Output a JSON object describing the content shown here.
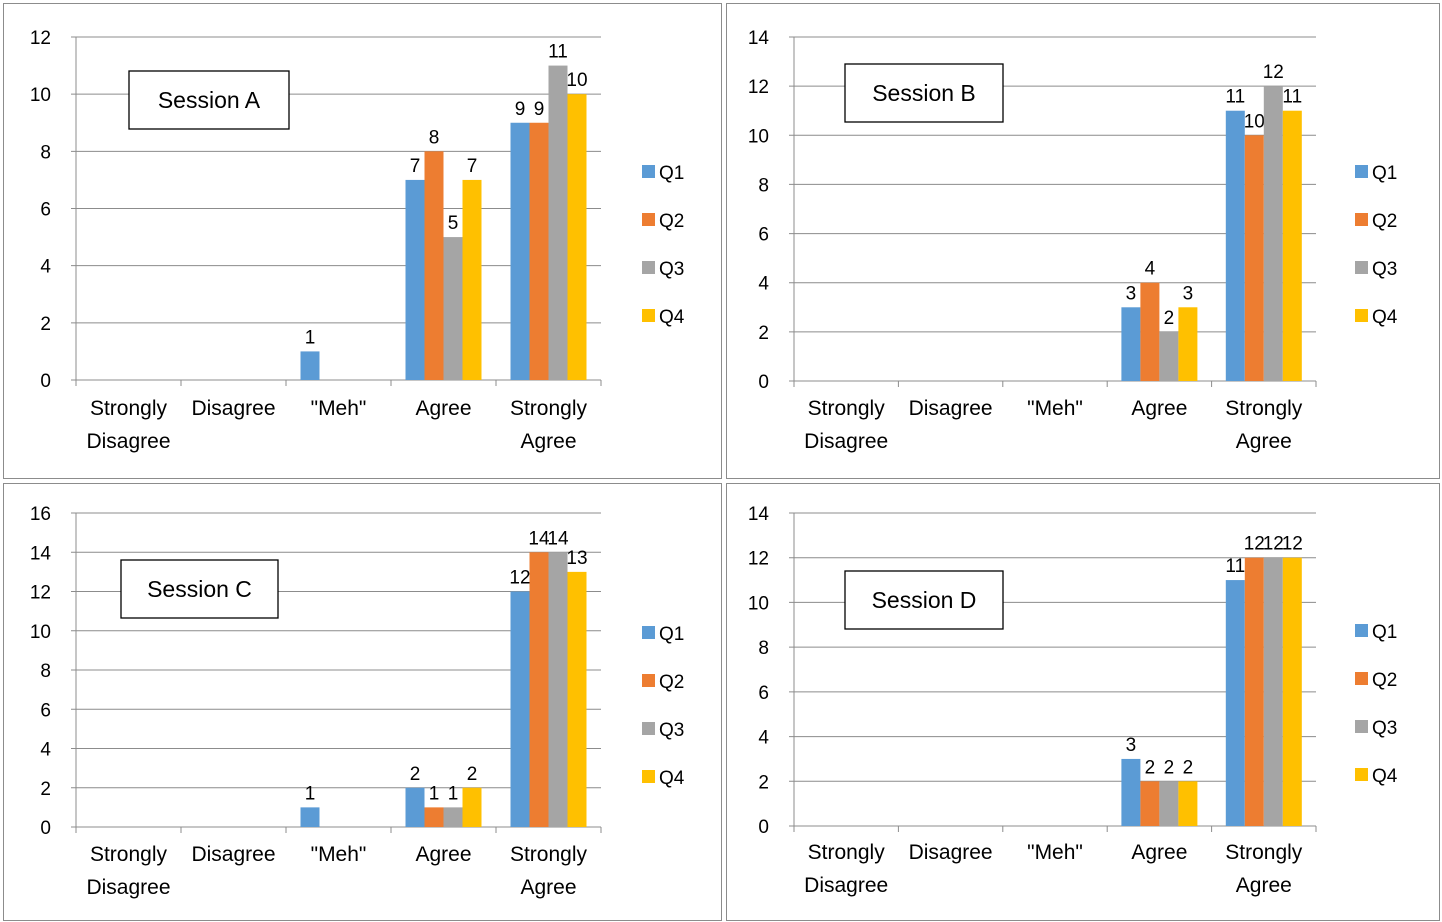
{
  "colors": {
    "Q1": "#5b9bd5",
    "Q2": "#ed7d31",
    "Q3": "#a5a5a5",
    "Q4": "#ffc000",
    "grid": "#8c8c8c"
  },
  "chart_data": [
    {
      "type": "bar",
      "title": "Session A",
      "categories": [
        [
          "Strongly",
          "Disagree"
        ],
        [
          "Disagree"
        ],
        [
          "\"Meh\""
        ],
        [
          "Agree"
        ],
        [
          "Strongly",
          "Agree"
        ]
      ],
      "series": [
        {
          "name": "Q1",
          "values": [
            0,
            0,
            1,
            7,
            9
          ]
        },
        {
          "name": "Q2",
          "values": [
            0,
            0,
            0,
            8,
            9
          ]
        },
        {
          "name": "Q3",
          "values": [
            0,
            0,
            0,
            5,
            11
          ]
        },
        {
          "name": "Q4",
          "values": [
            0,
            0,
            0,
            7,
            10
          ]
        }
      ],
      "ylim": [
        0,
        12
      ],
      "ystep": 2,
      "grid": true,
      "legend": "right"
    },
    {
      "type": "bar",
      "title": "Session B",
      "categories": [
        [
          "Strongly",
          "Disagree"
        ],
        [
          "Disagree"
        ],
        [
          "\"Meh\""
        ],
        [
          "Agree"
        ],
        [
          "Strongly",
          "Agree"
        ]
      ],
      "series": [
        {
          "name": "Q1",
          "values": [
            0,
            0,
            0,
            3,
            11
          ]
        },
        {
          "name": "Q2",
          "values": [
            0,
            0,
            0,
            4,
            10
          ]
        },
        {
          "name": "Q3",
          "values": [
            0,
            0,
            0,
            2,
            12
          ]
        },
        {
          "name": "Q4",
          "values": [
            0,
            0,
            0,
            3,
            11
          ]
        }
      ],
      "ylim": [
        0,
        14
      ],
      "ystep": 2,
      "grid": true,
      "legend": "right"
    },
    {
      "type": "bar",
      "title": "Session C",
      "categories": [
        [
          "Strongly",
          "Disagree"
        ],
        [
          "Disagree"
        ],
        [
          "\"Meh\""
        ],
        [
          "Agree"
        ],
        [
          "Strongly",
          "Agree"
        ]
      ],
      "series": [
        {
          "name": "Q1",
          "values": [
            0,
            0,
            1,
            2,
            12
          ]
        },
        {
          "name": "Q2",
          "values": [
            0,
            0,
            0,
            1,
            14
          ]
        },
        {
          "name": "Q3",
          "values": [
            0,
            0,
            0,
            1,
            14
          ]
        },
        {
          "name": "Q4",
          "values": [
            0,
            0,
            0,
            2,
            13
          ]
        }
      ],
      "ylim": [
        0,
        16
      ],
      "ystep": 2,
      "grid": true,
      "legend": "right"
    },
    {
      "type": "bar",
      "title": "Session D",
      "categories": [
        [
          "Strongly",
          "Disagree"
        ],
        [
          "Disagree"
        ],
        [
          "\"Meh\""
        ],
        [
          "Agree"
        ],
        [
          "Strongly",
          "Agree"
        ]
      ],
      "series": [
        {
          "name": "Q1",
          "values": [
            0,
            0,
            0,
            3,
            11
          ]
        },
        {
          "name": "Q2",
          "values": [
            0,
            0,
            0,
            2,
            12
          ]
        },
        {
          "name": "Q3",
          "values": [
            0,
            0,
            0,
            2,
            12
          ]
        },
        {
          "name": "Q4",
          "values": [
            0,
            0,
            0,
            2,
            12
          ]
        }
      ],
      "ylim": [
        0,
        14
      ],
      "ystep": 2,
      "grid": true,
      "legend": "right"
    }
  ]
}
